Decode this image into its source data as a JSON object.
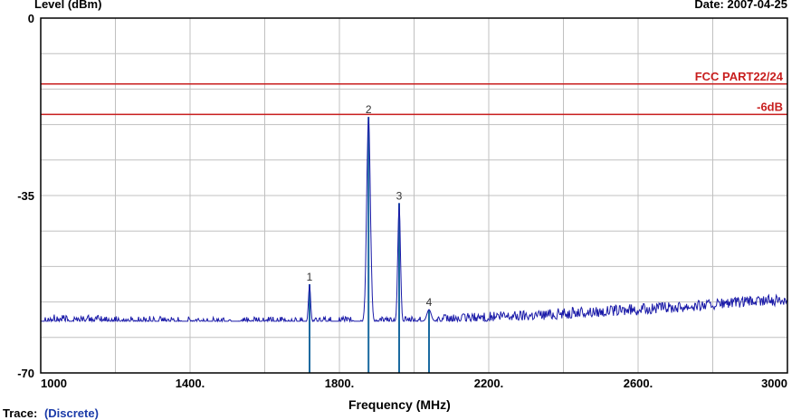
{
  "header": {
    "ylabel": "Level (dBm)",
    "date": "Date: 2007-04-25"
  },
  "footer": {
    "xlabel": "Frequency (MHz)",
    "trace_label": "Trace:",
    "trace_value": "(Discrete)"
  },
  "chart_data": {
    "type": "line",
    "xlabel": "Frequency (MHz)",
    "ylabel": "Level (dBm)",
    "xlim": [
      1000,
      3000
    ],
    "ylim": [
      -70,
      0
    ],
    "grid": true,
    "x_ticks": [
      {
        "value": 1000,
        "label": "1000"
      },
      {
        "value": 1400,
        "label": "1400."
      },
      {
        "value": 1800,
        "label": "1800."
      },
      {
        "value": 2200,
        "label": "2200."
      },
      {
        "value": 2600,
        "label": "2600."
      },
      {
        "value": 3000,
        "label": "3000"
      }
    ],
    "y_ticks": [
      {
        "value": 0,
        "label": "0"
      },
      {
        "value": -35,
        "label": "-35"
      },
      {
        "value": -70,
        "label": "-70"
      }
    ],
    "limit_lines": [
      {
        "label": "FCC PART22/24",
        "value": -13
      },
      {
        "label": "-6dB",
        "value": -19
      }
    ],
    "trace_noise_floor": [
      {
        "x": 1000,
        "y": -59.5
      },
      {
        "x": 1400,
        "y": -60.0
      },
      {
        "x": 1700,
        "y": -60.0
      },
      {
        "x": 2000,
        "y": -60.0
      },
      {
        "x": 2200,
        "y": -59.0
      },
      {
        "x": 2600,
        "y": -57.5
      },
      {
        "x": 3000,
        "y": -55.5
      }
    ],
    "markers": [
      {
        "label": "1",
        "x": 1720,
        "y": -52.5
      },
      {
        "label": "2",
        "x": 1878,
        "y": -19.5
      },
      {
        "label": "3",
        "x": 1960,
        "y": -36.5
      },
      {
        "label": "4",
        "x": 2040,
        "y": -57.5
      }
    ],
    "colors": {
      "trace": "#1a1aa8",
      "marker_line": "#1a6aa0",
      "limit": "#c81e1e",
      "grid": "#c0c0c0",
      "frame": "#000000"
    }
  }
}
